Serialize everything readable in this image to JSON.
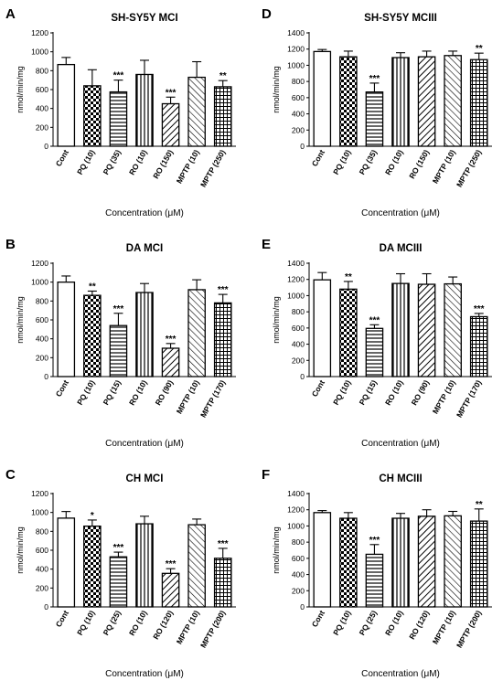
{
  "figure": {
    "xlabel": "Concentration (μM)",
    "ylabel": "nmol/min/mg"
  },
  "chart_data": [
    {
      "type": "bar",
      "panel_letter": "A",
      "title": "SH-SY5Y  MCI",
      "xlabel": "Concentration (μM)",
      "ylabel": "nmol/min/mg",
      "ylim": [
        0,
        1200
      ],
      "yticks": [
        0,
        200,
        400,
        600,
        800,
        1000,
        1200
      ],
      "categories": [
        "Cont",
        "PQ (10)",
        "PQ (35)",
        "RO (10)",
        "RO (150)",
        "MPTP (10)",
        "MPTP (250)"
      ],
      "values": [
        865,
        640,
        575,
        760,
        450,
        730,
        630
      ],
      "errors": [
        75,
        170,
        125,
        150,
        70,
        165,
        65
      ],
      "significance": [
        "",
        "",
        "***",
        "",
        "***",
        "",
        "**"
      ],
      "patterns": [
        "none",
        "check",
        "hlines",
        "vlines",
        "diag",
        "diagr",
        "grid"
      ]
    },
    {
      "type": "bar",
      "panel_letter": "D",
      "title": "SH-SY5Y  MCIII",
      "xlabel": "Concentration (μM)",
      "ylabel": "nmol/min/mg",
      "ylim": [
        0,
        1400
      ],
      "yticks": [
        0,
        200,
        400,
        600,
        800,
        1000,
        1200,
        1400
      ],
      "categories": [
        "Cont",
        "PQ (10)",
        "PQ (35)",
        "RO (10)",
        "RO (150)",
        "MPTP (10)",
        "MPTP (250)"
      ],
      "values": [
        1170,
        1105,
        670,
        1095,
        1105,
        1120,
        1070
      ],
      "errors": [
        25,
        70,
        110,
        60,
        70,
        55,
        80
      ],
      "significance": [
        "",
        "",
        "***",
        "",
        "",
        "",
        "**"
      ],
      "patterns": [
        "none",
        "check",
        "hlines",
        "vlines",
        "diag",
        "diagr",
        "grid"
      ]
    },
    {
      "type": "bar",
      "panel_letter": "B",
      "title": "DA MCI",
      "xlabel": "Concentration (μM)",
      "ylabel": "nmol/min/mg",
      "ylim": [
        0,
        1200
      ],
      "yticks": [
        0,
        200,
        400,
        600,
        800,
        1000,
        1200
      ],
      "categories": [
        "Cont",
        "PQ (10)",
        "PQ (15)",
        "RO (10)",
        "RO (90)",
        "MPTP (10)",
        "MPTP (170)"
      ],
      "values": [
        1000,
        860,
        540,
        890,
        300,
        920,
        780
      ],
      "errors": [
        65,
        45,
        130,
        95,
        50,
        105,
        90
      ],
      "significance": [
        "",
        "**",
        "***",
        "",
        "***",
        "",
        "***"
      ],
      "patterns": [
        "none",
        "check",
        "hlines",
        "vlines",
        "diag",
        "diagr",
        "grid"
      ]
    },
    {
      "type": "bar",
      "panel_letter": "E",
      "title": "DA MCIII",
      "xlabel": "Concentration (μM)",
      "ylabel": "nmol/min/mg",
      "ylim": [
        0,
        1400
      ],
      "yticks": [
        0,
        200,
        400,
        600,
        800,
        1000,
        1200,
        1400
      ],
      "categories": [
        "Cont",
        "PQ (10)",
        "PQ (15)",
        "RO (10)",
        "RO (90)",
        "MPTP (10)",
        "MPTP (170)"
      ],
      "values": [
        1195,
        1080,
        595,
        1150,
        1140,
        1145,
        740
      ],
      "errors": [
        90,
        95,
        45,
        120,
        130,
        85,
        40
      ],
      "significance": [
        "",
        "**",
        "***",
        "",
        "",
        "",
        "***"
      ],
      "patterns": [
        "none",
        "check",
        "hlines",
        "vlines",
        "diag",
        "diagr",
        "grid"
      ]
    },
    {
      "type": "bar",
      "panel_letter": "C",
      "title": "CH MCI",
      "xlabel": "Concentration (μM)",
      "ylabel": "nmol/min/mg",
      "ylim": [
        0,
        1200
      ],
      "yticks": [
        0,
        200,
        400,
        600,
        800,
        1000,
        1200
      ],
      "categories": [
        "Cont",
        "PQ (10)",
        "PQ (25)",
        "RO (10)",
        "RO (120)",
        "MPTP (10)",
        "MPTP (200)"
      ],
      "values": [
        940,
        855,
        530,
        880,
        355,
        870,
        515
      ],
      "errors": [
        70,
        65,
        50,
        80,
        50,
        60,
        105
      ],
      "significance": [
        "",
        "*",
        "***",
        "",
        "***",
        "",
        "***"
      ],
      "patterns": [
        "none",
        "check",
        "hlines",
        "vlines",
        "diag",
        "diagr",
        "grid"
      ]
    },
    {
      "type": "bar",
      "panel_letter": "F",
      "title": "CH MCIII",
      "xlabel": "Concentration (μM)",
      "ylabel": "nmol/min/mg",
      "ylim": [
        0,
        1400
      ],
      "yticks": [
        0,
        200,
        400,
        600,
        800,
        1000,
        1200,
        1400
      ],
      "categories": [
        "Cont",
        "PQ (10)",
        "PQ (25)",
        "RO (10)",
        "RO (120)",
        "MPTP (10)",
        "MPTP (200)"
      ],
      "values": [
        1165,
        1095,
        650,
        1095,
        1120,
        1125,
        1060
      ],
      "errors": [
        25,
        70,
        120,
        60,
        80,
        55,
        150
      ],
      "significance": [
        "",
        "",
        "***",
        "",
        "",
        "",
        "**"
      ],
      "patterns": [
        "none",
        "check",
        "hlines",
        "vlines",
        "diag",
        "diagr",
        "grid"
      ]
    }
  ]
}
